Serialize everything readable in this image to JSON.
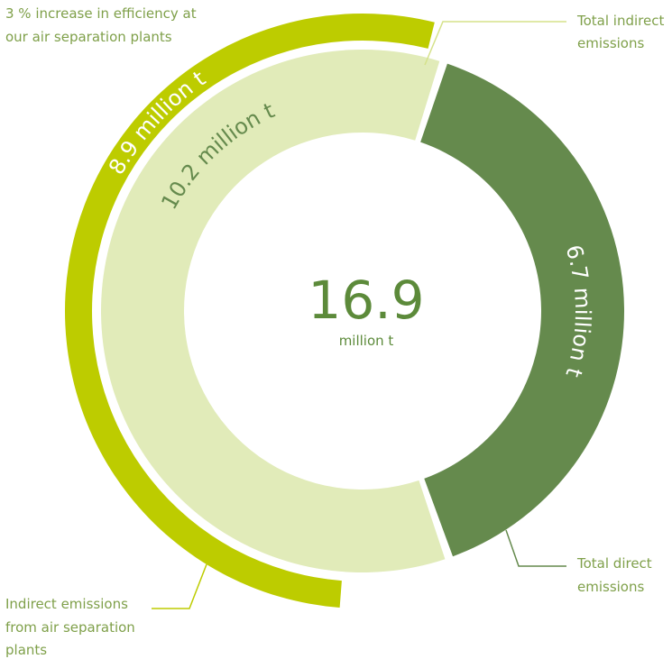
{
  "chart_data": {
    "type": "pie",
    "variant": "donut",
    "total": {
      "value": "16.9",
      "unit": "million t"
    },
    "segments": [
      {
        "label": "Total indirect emissions",
        "value": 10.2,
        "value_label": "10.2 million t",
        "color": "#e1ebb9"
      },
      {
        "label": "Total direct emissions",
        "value": 6.7,
        "value_label": "6.7 million t",
        "color": "#658a4d"
      }
    ],
    "sub_segment": {
      "label": "Indirect emissions from air separation plants",
      "value": 8.9,
      "value_label": "8.9 million t",
      "color": "#bdcc00",
      "annotation": "3 % increase in efficiency at our air separation plants"
    },
    "annotations": {
      "top_left": [
        "3 % increase in efficiency at",
        "our air separation plants"
      ],
      "top_right": [
        "Total indirect",
        "emissions"
      ],
      "bottom_right": [
        "Total direct",
        "emissions"
      ],
      "bottom_left": [
        "Indirect emissions",
        "from air separation",
        "plants"
      ]
    }
  },
  "colors": {
    "light_green": "#e1ebb9",
    "dark_green": "#658a4d",
    "lime": "#bdcc00",
    "label_text": "#7fa04a",
    "leader_line": "#bdcc00"
  }
}
